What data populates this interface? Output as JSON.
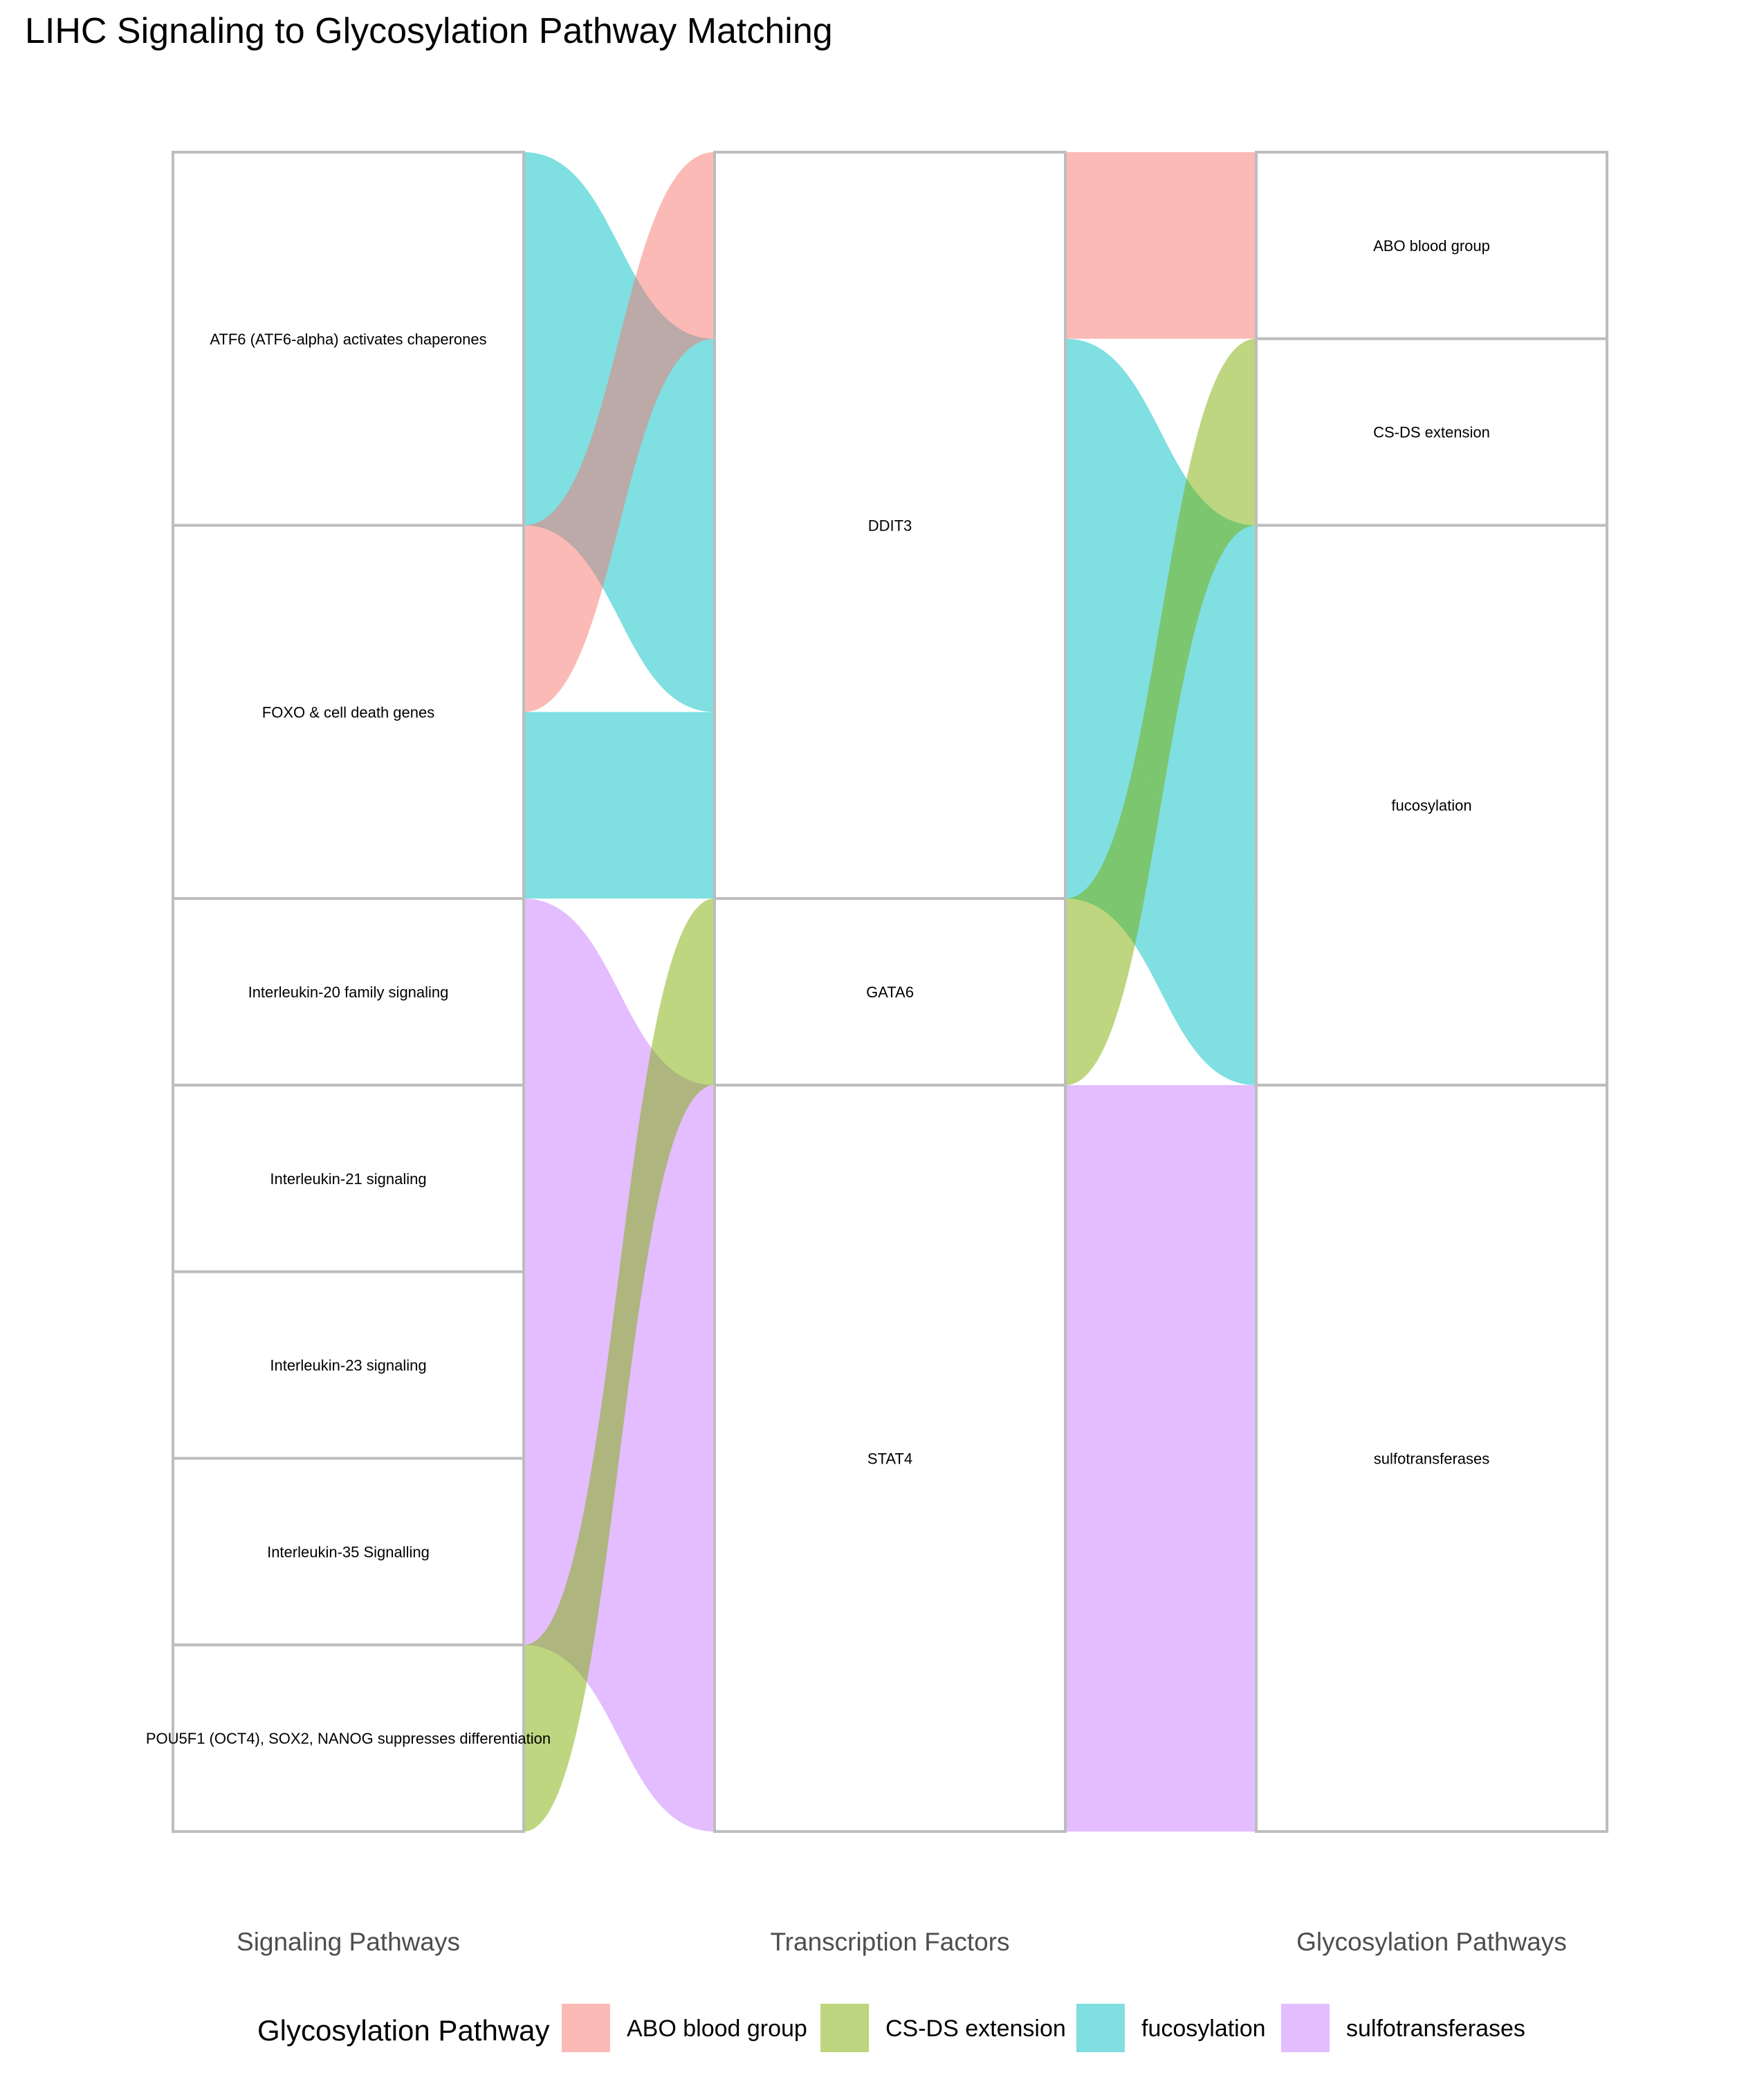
{
  "chart_data": {
    "type": "alluvial",
    "title": "LIHC Signaling to Glycosylation Pathway Matching",
    "axes": [
      {
        "name": "Signaling Pathways",
        "nodes": [
          "ATF6 (ATF6-alpha) activates chaperones",
          "FOXO & cell death genes",
          "Interleukin-20 family signaling",
          "Interleukin-21 signaling",
          "Interleukin-23 signaling",
          "Interleukin-35 Signalling",
          "POU5F1 (OCT4), SOX2, NANOG suppresses differentiation"
        ]
      },
      {
        "name": "Transcription Factors",
        "nodes": [
          "DDIT3",
          "GATA6",
          "STAT4"
        ]
      },
      {
        "name": "Glycosylation Pathways",
        "nodes": [
          "ABO blood group",
          "CS-DS extension",
          "fucosylation",
          "sulfotransferases"
        ]
      }
    ],
    "flows": [
      {
        "signaling": "ATF6 (ATF6-alpha) activates chaperones",
        "tf": "DDIT3",
        "glyco": "fucosylation",
        "value": 2
      },
      {
        "signaling": "FOXO & cell death genes",
        "tf": "DDIT3",
        "glyco": "ABO blood group",
        "value": 1
      },
      {
        "signaling": "FOXO & cell death genes",
        "tf": "DDIT3",
        "glyco": "fucosylation",
        "value": 1
      },
      {
        "signaling": "Interleukin-20 family signaling",
        "tf": "STAT4",
        "glyco": "sulfotransferases",
        "value": 1
      },
      {
        "signaling": "Interleukin-21 signaling",
        "tf": "STAT4",
        "glyco": "sulfotransferases",
        "value": 1
      },
      {
        "signaling": "Interleukin-23 signaling",
        "tf": "STAT4",
        "glyco": "sulfotransferases",
        "value": 1
      },
      {
        "signaling": "Interleukin-35 Signalling",
        "tf": "STAT4",
        "glyco": "sulfotransferases",
        "value": 1
      },
      {
        "signaling": "POU5F1 (OCT4), SOX2, NANOG suppresses differentiation",
        "tf": "GATA6",
        "glyco": "CS-DS extension",
        "value": 1
      }
    ],
    "legend": {
      "title": "Glycosylation Pathway",
      "position": "bottom",
      "items": [
        {
          "label": "ABO blood group",
          "color": "#F8766D"
        },
        {
          "label": "CS-DS extension",
          "color": "#7CAE00"
        },
        {
          "label": "fucosylation",
          "color": "#00BFC4"
        },
        {
          "label": "sulfotransferases",
          "color": "#C77CFF"
        }
      ]
    },
    "flow_opacity": 0.5
  }
}
